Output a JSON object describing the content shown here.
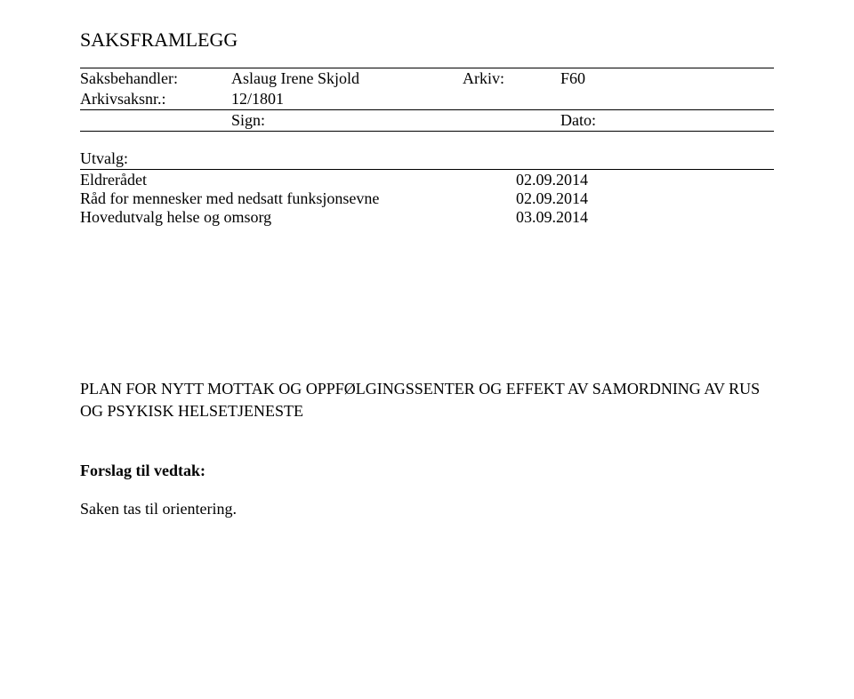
{
  "title": "SAKSFRAMLEGG",
  "meta": {
    "saksbehandler_label": "Saksbehandler:",
    "saksbehandler_value": "Aslaug Irene Skjold",
    "arkiv_label": "Arkiv:",
    "arkiv_value": "F60",
    "arkivsaksnr_label": "Arkivsaksnr.:",
    "arkivsaksnr_value": "12/1801",
    "sign_label": "Sign:",
    "dato_label": "Dato:"
  },
  "utvalg": {
    "header": "Utvalg:",
    "rows": [
      {
        "name": "Eldrerådet",
        "date": "02.09.2014"
      },
      {
        "name": "Råd for mennesker med nedsatt funksjonsevne",
        "date": "02.09.2014"
      },
      {
        "name": "Hovedutvalg helse og omsorg",
        "date": "03.09.2014"
      }
    ]
  },
  "plan_heading": "PLAN FOR NYTT MOTTAK OG OPPFØLGINGSSENTER OG EFFEKT AV SAMORDNING AV RUS OG PSYKISK HELSETJENESTE",
  "forslag_label": "Forslag til vedtak:",
  "orientering": "Saken tas til orientering."
}
